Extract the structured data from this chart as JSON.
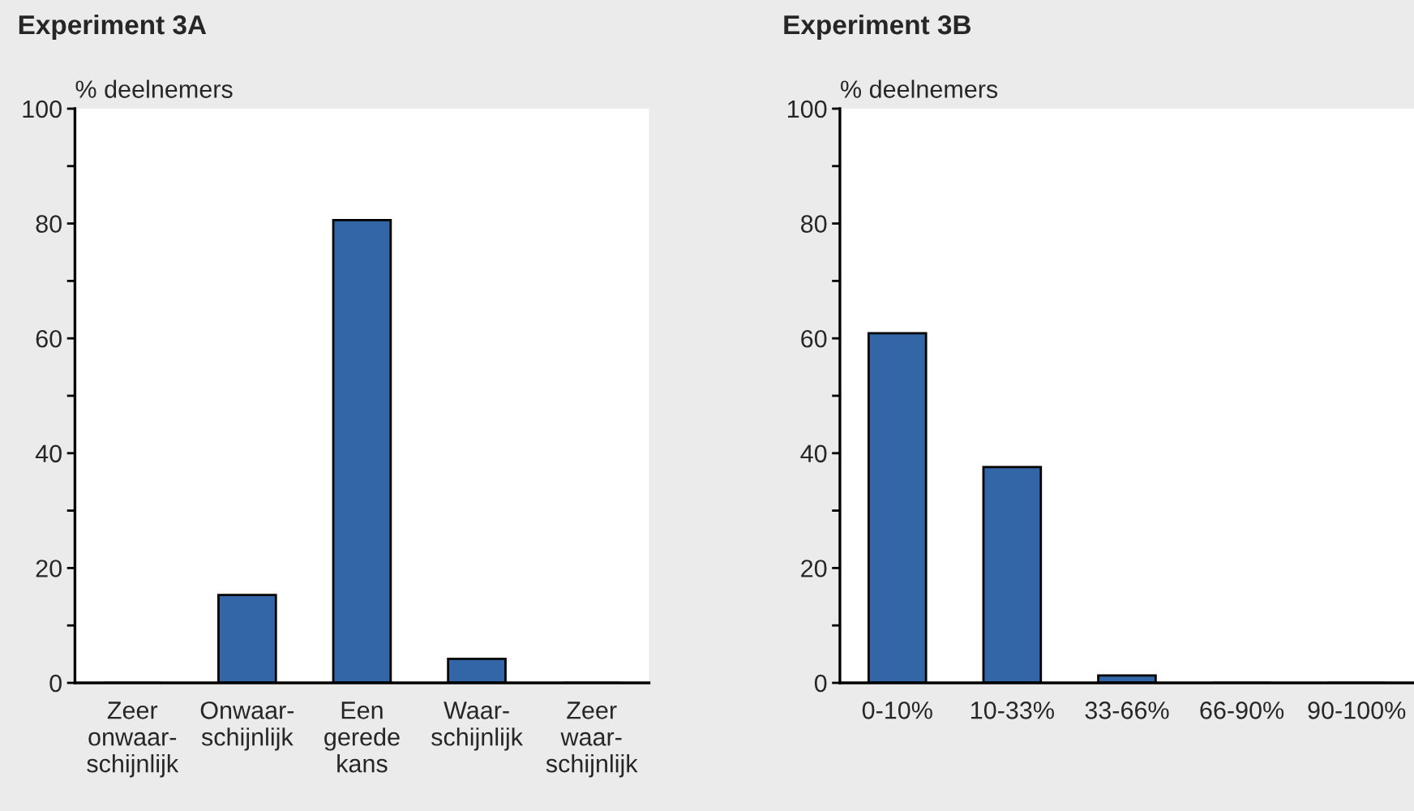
{
  "chart_data": [
    {
      "type": "bar",
      "title": "Experiment 3A",
      "ylabel": "% deelnemers",
      "categories": [
        "Zeer\nonwaar-\nschijnlijk",
        "Onwaar-\nschijnlijk",
        "Een\ngerede\nkans",
        "Waar-\nschijnlijk",
        "Zeer\nwaar-\nschijnlijk"
      ],
      "values": [
        0,
        15.3,
        80.6,
        4.2,
        0
      ],
      "color": "#3366a6",
      "ylim": [
        0,
        100
      ],
      "yticks": [
        0,
        {
          "value": 10,
          "label": null
        },
        20,
        {
          "value": 30,
          "label": null
        },
        40,
        {
          "value": 50,
          "label": null
        },
        60,
        {
          "value": 70,
          "label": null
        },
        80,
        {
          "value": 90,
          "label": null
        },
        100
      ],
      "grid": false
    },
    {
      "type": "bar",
      "title": "Experiment 3B",
      "ylabel": "% deelnemers",
      "categories": [
        "0-10%",
        "10-33%",
        "33-66%",
        "66-90%",
        "90-100%"
      ],
      "values": [
        60.9,
        37.6,
        1.3,
        0,
        0
      ],
      "color": "#3366a6",
      "ylim": [
        0,
        100
      ],
      "yticks": [
        0,
        {
          "value": 10,
          "label": null
        },
        20,
        {
          "value": 30,
          "label": null
        },
        40,
        {
          "value": 50,
          "label": null
        },
        60,
        {
          "value": 70,
          "label": null
        },
        80,
        {
          "value": 90,
          "label": null
        },
        100
      ],
      "grid": false
    }
  ]
}
